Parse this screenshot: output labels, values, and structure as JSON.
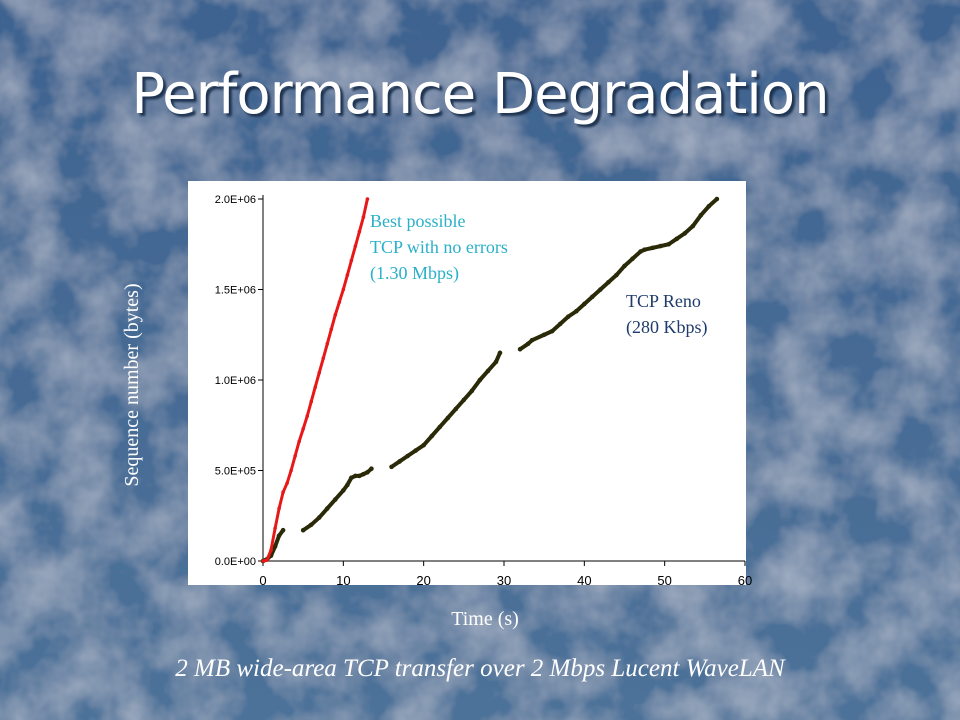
{
  "slide": {
    "title": "Performance Degradation",
    "caption": "2 MB wide-area TCP transfer over 2 Mbps Lucent WaveLAN"
  },
  "colors": {
    "background": "#4a6f98",
    "best_series": "#e81818",
    "reno_series": "#2a2a08",
    "best_annotation": "#2ab0c8",
    "reno_annotation": "#1f3b6b"
  },
  "chart_data": {
    "type": "scatter",
    "title": "",
    "xlabel": "Time (s)",
    "ylabel": "Sequence number (bytes)",
    "xlim": [
      0,
      60
    ],
    "ylim": [
      0,
      2000000
    ],
    "x_ticks": [
      "0",
      "10",
      "20",
      "30",
      "40",
      "50",
      "60"
    ],
    "y_ticks": [
      "0.0E+00",
      "5.0E+05",
      "1.0E+06",
      "1.5E+06",
      "2.0E+06"
    ],
    "grid": false,
    "annotations": [
      {
        "lines": [
          "Best possible",
          "TCP with no errors",
          "(1.30 Mbps)"
        ]
      },
      {
        "lines": [
          "TCP Reno",
          "(280 Kbps)"
        ]
      }
    ],
    "series": [
      {
        "x": [
          0.0,
          0.5,
          1.0,
          1.5,
          2.0,
          2.5,
          3.0,
          3.5,
          4.0,
          4.5,
          5.0,
          5.5,
          6.0,
          6.5,
          7.0,
          7.5,
          8.0,
          8.5,
          9.0,
          9.5,
          10.0,
          10.5,
          11.0,
          11.5,
          12.0,
          12.5,
          13.0
        ],
        "y": [
          0,
          5000,
          60000,
          180000,
          290000,
          380000,
          430000,
          500000,
          580000,
          660000,
          730000,
          800000,
          880000,
          960000,
          1040000,
          1120000,
          1200000,
          1280000,
          1360000,
          1430000,
          1500000,
          1580000,
          1660000,
          1740000,
          1820000,
          1900000,
          2000000
        ]
      },
      {
        "x": [
          0.0,
          0.5,
          1.0,
          1.5,
          2.0,
          2.5,
          5.0,
          6.0,
          7.0,
          8.0,
          9.0,
          10.0,
          10.5,
          11.0,
          11.5,
          12.0,
          12.5,
          13.0,
          13.5,
          16.0,
          17.0,
          18.0,
          19.0,
          20.0,
          21.0,
          22.0,
          23.0,
          24.0,
          25.0,
          26.0,
          27.0,
          28.0,
          29.0,
          29.5,
          32.0,
          33.0,
          33.5,
          35.0,
          36.0,
          37.0,
          38.0,
          39.0,
          40.0,
          41.0,
          42.0,
          43.0,
          44.0,
          45.0,
          46.0,
          47.0,
          47.5,
          48.5,
          49.5,
          50.5,
          51.5,
          52.5,
          53.5,
          54.5,
          55.5,
          56.5
        ],
        "y": [
          0,
          10000,
          30000,
          80000,
          140000,
          170000,
          170000,
          200000,
          240000,
          290000,
          340000,
          390000,
          420000,
          460000,
          470000,
          470000,
          480000,
          490000,
          510000,
          520000,
          550000,
          580000,
          610000,
          640000,
          690000,
          740000,
          790000,
          840000,
          890000,
          940000,
          1000000,
          1050000,
          1100000,
          1150000,
          1170000,
          1200000,
          1220000,
          1250000,
          1270000,
          1310000,
          1350000,
          1380000,
          1420000,
          1460000,
          1500000,
          1540000,
          1580000,
          1630000,
          1670000,
          1710000,
          1720000,
          1730000,
          1740000,
          1750000,
          1780000,
          1810000,
          1850000,
          1910000,
          1960000,
          2000000
        ]
      }
    ]
  }
}
